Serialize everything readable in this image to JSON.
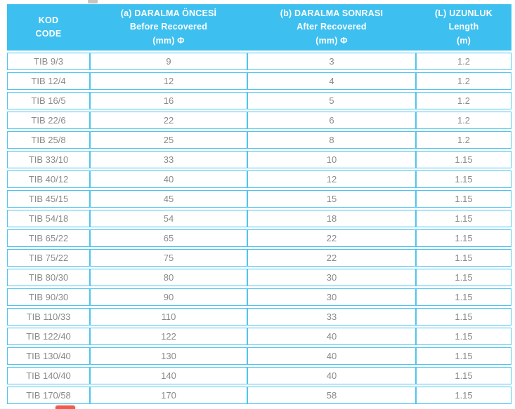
{
  "colors": {
    "header_bg": "#3dc0ef",
    "cell_border": "#4dc5f0",
    "body_text": "#8a8a8a",
    "header_text": "#ffffff",
    "top_fragment": "#c8c5c2",
    "bottom_fragment": "#ee5c50"
  },
  "table": {
    "columns": [
      {
        "line1": "KOD",
        "line2": "CODE",
        "line3": ""
      },
      {
        "line1": "(a) DARALMA ÖNCESİ",
        "line2": "Before Recovered",
        "line3": "(mm) Φ"
      },
      {
        "line1": "(b) DARALMA SONRASI",
        "line2": "After Recovered",
        "line3": "(mm) Φ"
      },
      {
        "line1": "(L) UZUNLUK",
        "line2": "Length",
        "line3": "(m)"
      }
    ],
    "rows": [
      {
        "code": "TIB 9/3",
        "before": "9",
        "after": "3",
        "length": "1.2"
      },
      {
        "code": "TIB 12/4",
        "before": "12",
        "after": "4",
        "length": "1.2"
      },
      {
        "code": "TIB 16/5",
        "before": "16",
        "after": "5",
        "length": "1.2"
      },
      {
        "code": "TIB 22/6",
        "before": "22",
        "after": "6",
        "length": "1.2"
      },
      {
        "code": "TIB 25/8",
        "before": "25",
        "after": "8",
        "length": "1.2"
      },
      {
        "code": "TIB 33/10",
        "before": "33",
        "after": "10",
        "length": "1.15"
      },
      {
        "code": "TIB 40/12",
        "before": "40",
        "after": "12",
        "length": "1.15"
      },
      {
        "code": "TIB 45/15",
        "before": "45",
        "after": "15",
        "length": "1.15"
      },
      {
        "code": "TIB 54/18",
        "before": "54",
        "after": "18",
        "length": "1.15"
      },
      {
        "code": "TIB 65/22",
        "before": "65",
        "after": "22",
        "length": "1.15"
      },
      {
        "code": "TIB 75/22",
        "before": "75",
        "after": "22",
        "length": "1.15"
      },
      {
        "code": "TIB 80/30",
        "before": "80",
        "after": "30",
        "length": "1.15"
      },
      {
        "code": "TIB 90/30",
        "before": "90",
        "after": "30",
        "length": "1.15"
      },
      {
        "code": "TIB 110/33",
        "before": "110",
        "after": "33",
        "length": "1.15"
      },
      {
        "code": "TIB 122/40",
        "before": "122",
        "after": "40",
        "length": "1.15"
      },
      {
        "code": "TIB 130/40",
        "before": "130",
        "after": "40",
        "length": "1.15"
      },
      {
        "code": "TIB 140/40",
        "before": "140",
        "after": "40",
        "length": "1.15"
      },
      {
        "code": "TIB 170/58",
        "before": "170",
        "after": "58",
        "length": "1.15"
      }
    ]
  }
}
